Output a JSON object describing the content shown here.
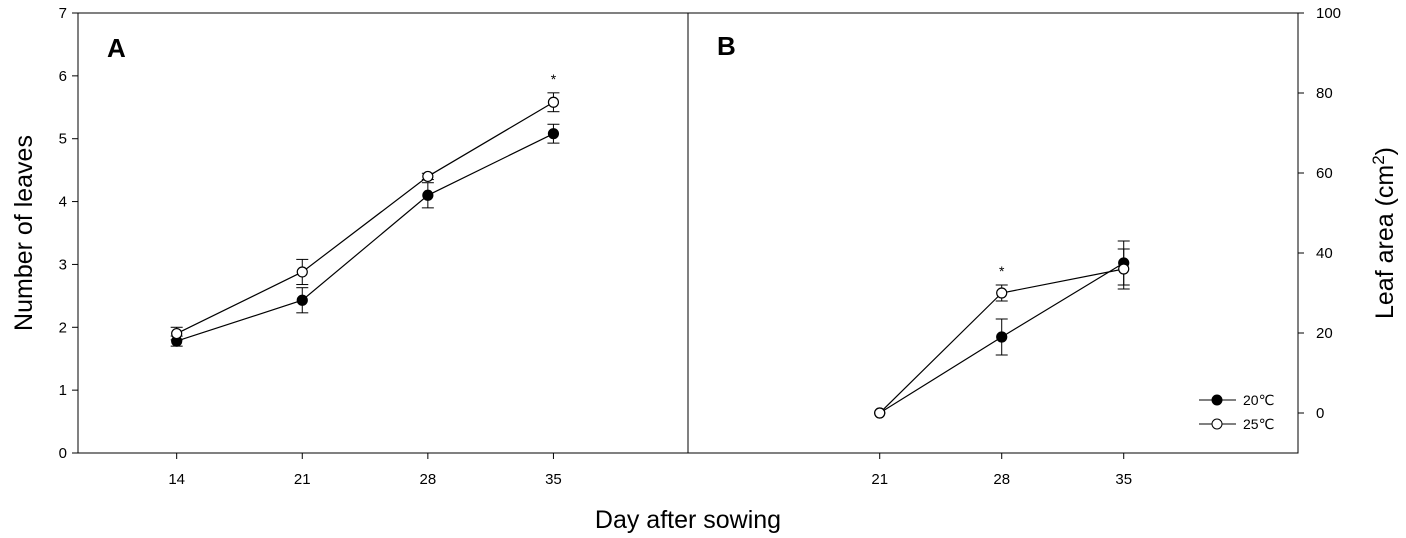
{
  "chart_data": [
    {
      "panel_label": "A",
      "type": "line",
      "xlabel": "Day after sowing",
      "ylabel": "Number of leaves",
      "ylim": [
        0,
        7
      ],
      "y_ticks": [
        0,
        1,
        2,
        3,
        4,
        5,
        6,
        7
      ],
      "x": [
        14,
        21,
        28,
        35
      ],
      "x_tick_labels": [
        "14",
        "21",
        "28",
        "35"
      ],
      "series": [
        {
          "name": "20℃",
          "marker": "filled-circle",
          "values": [
            1.78,
            2.43,
            4.1,
            5.08
          ],
          "error": [
            0.08,
            0.2,
            0.2,
            0.15
          ]
        },
        {
          "name": "25℃",
          "marker": "open-circle",
          "values": [
            1.9,
            2.88,
            4.4,
            5.58
          ],
          "error": [
            0.1,
            0.2,
            0.05,
            0.15
          ]
        }
      ],
      "annotations": [
        {
          "x": 35,
          "text": "*"
        }
      ]
    },
    {
      "panel_label": "B",
      "type": "line",
      "xlabel": "Day after sowing",
      "ylabel": "Leaf area (cm2)",
      "ylim": [
        -10,
        100
      ],
      "y_ticks": [
        0,
        20,
        40,
        60,
        80,
        100
      ],
      "x": [
        21,
        28,
        35
      ],
      "x_tick_labels": [
        "21",
        "28",
        "35"
      ],
      "series": [
        {
          "name": "20℃",
          "marker": "filled-circle",
          "values": [
            0,
            19,
            37.5
          ],
          "error": [
            0,
            4.5,
            5.5
          ]
        },
        {
          "name": "25℃",
          "marker": "open-circle",
          "values": [
            0,
            30,
            36
          ],
          "error": [
            0,
            2,
            5
          ]
        }
      ],
      "annotations": [
        {
          "x": 28,
          "text": "*"
        }
      ],
      "legend": {
        "placement": "bottom-right",
        "entries": [
          "20℃",
          "25℃"
        ]
      }
    }
  ],
  "figure": {
    "xlabel": "Day after sowing",
    "left_ylabel": "Number of leaves",
    "right_ylabel_main": "Leaf area (cm",
    "right_ylabel_sup": "2",
    "right_ylabel_close": ")"
  }
}
